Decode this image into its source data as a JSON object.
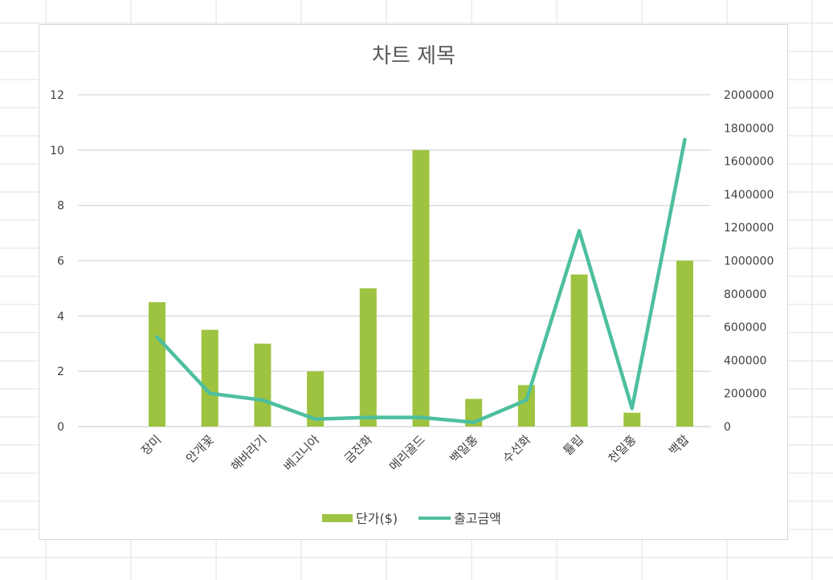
{
  "chart_data": {
    "type": "bar",
    "title": "차트 제목",
    "categories": [
      "장미",
      "안개꽃",
      "해바라기",
      "베고니아",
      "금잔화",
      "메리골드",
      "백일홍",
      "수선화",
      "튤립",
      "천일홍",
      "백합"
    ],
    "series": [
      {
        "name": "단가($)",
        "type": "bar",
        "axis": "left",
        "color": "#9dc340",
        "values": [
          4.5,
          3.5,
          3,
          2,
          5,
          10,
          1,
          1.5,
          5.5,
          0.5,
          6
        ]
      },
      {
        "name": "출고금액",
        "type": "line",
        "axis": "right",
        "color": "#4dbf9f",
        "values": [
          540000,
          200000,
          160000,
          45000,
          55000,
          55000,
          25000,
          160000,
          1180000,
          110000,
          1730000
        ]
      }
    ],
    "y_left": {
      "ylim": [
        0,
        12
      ],
      "ticks": [
        "0",
        "2",
        "4",
        "6",
        "8",
        "10",
        "12"
      ]
    },
    "y_right": {
      "ylim": [
        0,
        2000000
      ],
      "ticks": [
        "0",
        "200000",
        "400000",
        "600000",
        "800000",
        "1000000",
        "1200000",
        "1400000",
        "1600000",
        "1800000",
        "2000000"
      ]
    },
    "grid": true,
    "legend": "bottom"
  }
}
